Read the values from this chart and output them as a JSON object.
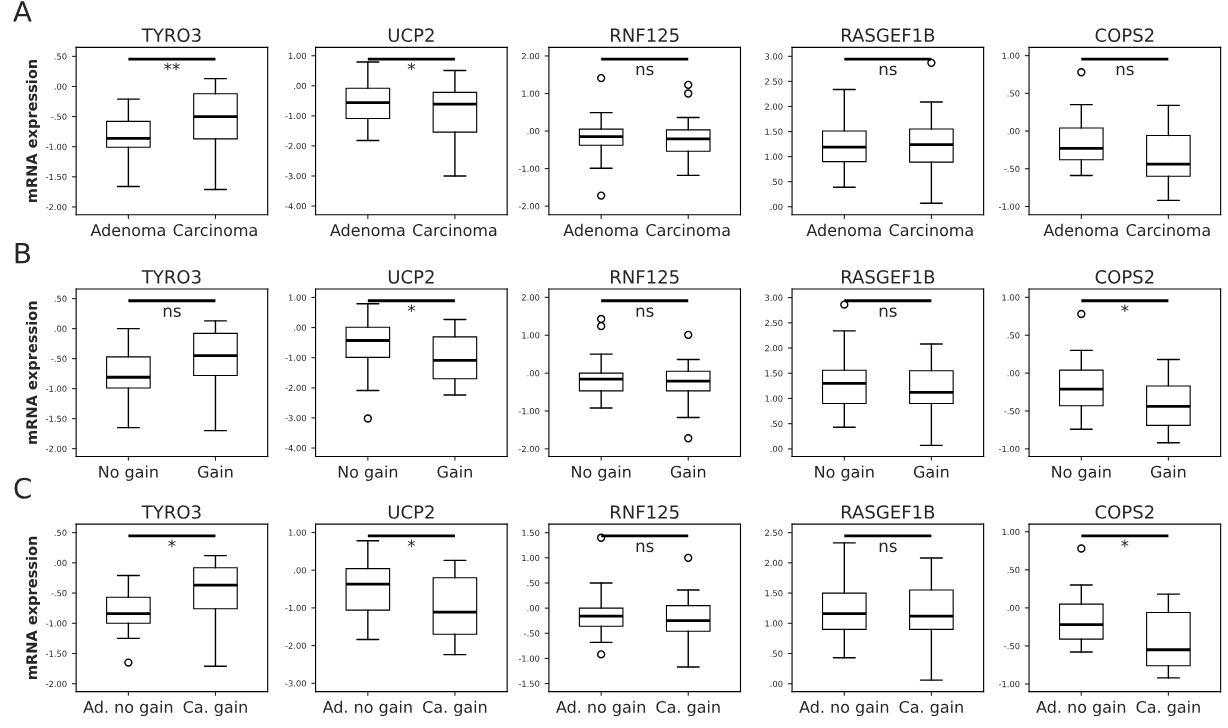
{
  "chart_data": [
    {
      "type": "box",
      "title": "TYRO3",
      "ylabel": "mRNA expression",
      "annotations": [
        "A",
        "**"
      ],
      "categories": [
        "Adenoma",
        "Carcinoma"
      ],
      "ylim": [
        -2.13,
        0.65
      ],
      "yticks": [
        {
          "value": -2,
          "label": "-2.00"
        },
        {
          "value": -1.5,
          "label": "-1.50"
        },
        {
          "value": -1,
          "label": "-1.00"
        },
        {
          "value": -0.5,
          "label": "-.50"
        },
        {
          "value": 0,
          "label": ".00"
        },
        {
          "value": 0.5,
          "label": ".50"
        }
      ],
      "boxes": [
        {
          "low": -1.66,
          "q1": -1.01,
          "median": -0.86,
          "q3": -0.58,
          "high": -0.21
        },
        {
          "low": -1.71,
          "q1": -0.87,
          "median": -0.5,
          "q3": -0.12,
          "high": 0.13
        }
      ]
    },
    {
      "type": "box",
      "title": "UCP2",
      "annotations": [
        "*"
      ],
      "categories": [
        "Adenoma",
        "Carcinoma"
      ],
      "ylim": [
        -4.29,
        1.28
      ],
      "yticks": [
        {
          "value": -4,
          "label": "-4.00"
        },
        {
          "value": -3,
          "label": "-3.00"
        },
        {
          "value": -2,
          "label": "-2.00"
        },
        {
          "value": -1,
          "label": "-1.00"
        },
        {
          "value": 0,
          "label": ".00"
        },
        {
          "value": 1,
          "label": "1.00"
        }
      ],
      "boxes": [
        {
          "low": -1.82,
          "q1": -1.09,
          "median": -0.56,
          "q3": -0.08,
          "high": 0.79
        },
        {
          "low": -3.0,
          "q1": -1.54,
          "median": -0.61,
          "q3": -0.22,
          "high": 0.51
        }
      ]
    },
    {
      "type": "box",
      "title": "RNF125",
      "annotations": [
        "ns"
      ],
      "categories": [
        "Adenoma",
        "Carcinoma"
      ],
      "ylim": [
        -2.23,
        2.23
      ],
      "yticks": [
        {
          "value": -2,
          "label": "-2.00"
        },
        {
          "value": -1,
          "label": "-1.00"
        },
        {
          "value": 0,
          "label": ".00"
        },
        {
          "value": 1,
          "label": "1.00"
        },
        {
          "value": 2,
          "label": "2.00"
        }
      ],
      "boxes": [
        {
          "low": -0.99,
          "q1": -0.38,
          "median": -0.15,
          "q3": 0.05,
          "high": 0.49,
          "outliers": [
            1.41,
            -1.72
          ]
        },
        {
          "low": -1.18,
          "q1": -0.54,
          "median": -0.21,
          "q3": 0.03,
          "high": 0.36,
          "outliers": [
            1.23,
            1.0
          ]
        }
      ]
    },
    {
      "type": "box",
      "title": "RASGEF1B",
      "annotations": [
        "ns"
      ],
      "categories": [
        "Adenoma",
        "Carcinoma"
      ],
      "ylim": [
        -0.16,
        3.18
      ],
      "yticks": [
        {
          "value": 0,
          "label": ".00"
        },
        {
          "value": 0.5,
          "label": ".50"
        },
        {
          "value": 1,
          "label": "1.00"
        },
        {
          "value": 1.5,
          "label": "1.50"
        },
        {
          "value": 2,
          "label": "2.00"
        },
        {
          "value": 2.5,
          "label": "2.50"
        },
        {
          "value": 3,
          "label": "3.00"
        }
      ],
      "boxes": [
        {
          "low": 0.39,
          "q1": 0.9,
          "median": 1.19,
          "q3": 1.51,
          "high": 2.34
        },
        {
          "low": 0.07,
          "q1": 0.89,
          "median": 1.24,
          "q3": 1.55,
          "high": 2.09,
          "outliers": [
            2.87
          ]
        }
      ]
    },
    {
      "type": "box",
      "title": "COPS2",
      "annotations": [
        "ns"
      ],
      "categories": [
        "Adenoma",
        "Carcinoma"
      ],
      "ylim": [
        -1.11,
        1.11
      ],
      "yticks": [
        {
          "value": -1,
          "label": "-1.00"
        },
        {
          "value": -0.5,
          "label": "-.50"
        },
        {
          "value": 0,
          "label": ".00"
        },
        {
          "value": 0.5,
          "label": ".50"
        },
        {
          "value": 1,
          "label": "1.00"
        }
      ],
      "boxes": [
        {
          "low": -0.59,
          "q1": -0.38,
          "median": -0.23,
          "q3": 0.04,
          "high": 0.35,
          "outliers": [
            0.78
          ]
        },
        {
          "low": -0.92,
          "q1": -0.6,
          "median": -0.44,
          "q3": -0.06,
          "high": 0.34
        }
      ]
    },
    {
      "type": "box",
      "title": "TYRO3",
      "ylabel": "mRNA expression",
      "annotations": [
        "B",
        "ns"
      ],
      "categories": [
        "No gain",
        "Gain"
      ],
      "ylim": [
        -2.13,
        0.66
      ],
      "yticks": [
        {
          "value": -2,
          "label": "-2.00"
        },
        {
          "value": -1.5,
          "label": "-1.50"
        },
        {
          "value": -1,
          "label": "-1.00"
        },
        {
          "value": -0.5,
          "label": "-.50"
        },
        {
          "value": 0,
          "label": ".00"
        },
        {
          "value": 0.5,
          "label": ".50"
        }
      ],
      "boxes": [
        {
          "low": -1.65,
          "q1": -0.99,
          "median": -0.81,
          "q3": -0.47,
          "high": 0.0
        },
        {
          "low": -1.7,
          "q1": -0.78,
          "median": -0.45,
          "q3": -0.08,
          "high": 0.13
        }
      ]
    },
    {
      "type": "box",
      "title": "UCP2",
      "annotations": [
        "*"
      ],
      "categories": [
        "No gain",
        "Gain"
      ],
      "ylim": [
        -4.28,
        1.28
      ],
      "yticks": [
        {
          "value": -4,
          "label": "-4.00"
        },
        {
          "value": -3,
          "label": "-3.00"
        },
        {
          "value": -2,
          "label": "-2.00"
        },
        {
          "value": -1,
          "label": "-1.00"
        },
        {
          "value": 0,
          "label": ".00"
        },
        {
          "value": 1,
          "label": "1.00"
        }
      ],
      "boxes": [
        {
          "low": -2.09,
          "q1": -0.99,
          "median": -0.43,
          "q3": 0.01,
          "high": 0.79,
          "outliers": [
            -3.02
          ]
        },
        {
          "low": -2.24,
          "q1": -1.7,
          "median": -1.09,
          "q3": -0.31,
          "high": 0.27
        }
      ]
    },
    {
      "type": "box",
      "title": "RNF125",
      "annotations": [
        "ns"
      ],
      "categories": [
        "No gain",
        "Gain"
      ],
      "ylim": [
        -2.2,
        2.22
      ],
      "yticks": [
        {
          "value": -2,
          "label": "-2.00"
        },
        {
          "value": -1,
          "label": "-1.00"
        },
        {
          "value": 0,
          "label": ".00"
        },
        {
          "value": 1,
          "label": "1.00"
        },
        {
          "value": 2,
          "label": "2.00"
        }
      ],
      "boxes": [
        {
          "low": -0.92,
          "q1": -0.47,
          "median": -0.16,
          "q3": 0.0,
          "high": 0.5,
          "outliers": [
            1.43,
            1.24
          ]
        },
        {
          "low": -1.17,
          "q1": -0.47,
          "median": -0.21,
          "q3": 0.05,
          "high": 0.36,
          "outliers": [
            1.01,
            -1.72
          ]
        }
      ]
    },
    {
      "type": "box",
      "title": "RASGEF1B",
      "annotations": [
        "ns"
      ],
      "categories": [
        "No gain",
        "Gain"
      ],
      "ylim": [
        -0.15,
        3.17
      ],
      "yticks": [
        {
          "value": 0,
          "label": ".00"
        },
        {
          "value": 0.5,
          "label": ".50"
        },
        {
          "value": 1,
          "label": "1.00"
        },
        {
          "value": 1.5,
          "label": "1.50"
        },
        {
          "value": 2,
          "label": "2.00"
        },
        {
          "value": 2.5,
          "label": "2.50"
        },
        {
          "value": 3,
          "label": "3.00"
        }
      ],
      "boxes": [
        {
          "low": 0.43,
          "q1": 0.9,
          "median": 1.3,
          "q3": 1.56,
          "high": 2.34,
          "outliers": [
            2.86
          ]
        },
        {
          "low": 0.07,
          "q1": 0.9,
          "median": 1.12,
          "q3": 1.55,
          "high": 2.08
        }
      ]
    },
    {
      "type": "box",
      "title": "COPS2",
      "annotations": [
        "*"
      ],
      "categories": [
        "No gain",
        "Gain"
      ],
      "ylim": [
        -1.1,
        1.11
      ],
      "yticks": [
        {
          "value": -1,
          "label": "-1.00"
        },
        {
          "value": -0.5,
          "label": "-.50"
        },
        {
          "value": 0,
          "label": ".00"
        },
        {
          "value": 0.5,
          "label": ".50"
        },
        {
          "value": 1,
          "label": "1.00"
        }
      ],
      "boxes": [
        {
          "low": -0.74,
          "q1": -0.43,
          "median": -0.21,
          "q3": 0.04,
          "high": 0.3,
          "outliers": [
            0.78
          ]
        },
        {
          "low": -0.92,
          "q1": -0.69,
          "median": -0.44,
          "q3": -0.17,
          "high": 0.18
        }
      ]
    },
    {
      "type": "box",
      "title": "TYRO3",
      "ylabel": "mRNA expression",
      "annotations": [
        "C",
        "*"
      ],
      "categories": [
        "Ad. no gain",
        "Ca. gain"
      ],
      "ylim": [
        -2.13,
        0.64
      ],
      "yticks": [
        {
          "value": -2,
          "label": "-2.00"
        },
        {
          "value": -1.5,
          "label": "-1.50"
        },
        {
          "value": -1,
          "label": "-1.00"
        },
        {
          "value": -0.5,
          "label": "-.50"
        },
        {
          "value": 0,
          "label": ".00"
        },
        {
          "value": 0.5,
          "label": ".50"
        }
      ],
      "boxes": [
        {
          "low": -1.25,
          "q1": -1.0,
          "median": -0.84,
          "q3": -0.57,
          "high": -0.21,
          "outliers": [
            -1.65
          ]
        },
        {
          "low": -1.71,
          "q1": -0.76,
          "median": -0.37,
          "q3": -0.08,
          "high": 0.12
        }
      ]
    },
    {
      "type": "box",
      "title": "UCP2",
      "annotations": [
        "*"
      ],
      "categories": [
        "Ad. no gain",
        "Ca. gain"
      ],
      "ylim": [
        -3.22,
        1.22
      ],
      "yticks": [
        {
          "value": -3,
          "label": "-3.00"
        },
        {
          "value": -2,
          "label": "-2.00"
        },
        {
          "value": -1,
          "label": "-1.00"
        },
        {
          "value": 0,
          "label": ".00"
        },
        {
          "value": 1,
          "label": "1.00"
        }
      ],
      "boxes": [
        {
          "low": -1.84,
          "q1": -1.06,
          "median": -0.37,
          "q3": 0.04,
          "high": 0.78
        },
        {
          "low": -2.24,
          "q1": -1.7,
          "median": -1.11,
          "q3": -0.2,
          "high": 0.26
        }
      ]
    },
    {
      "type": "box",
      "title": "RNF125",
      "annotations": [
        "ns"
      ],
      "categories": [
        "Ad. no gain",
        "Ca. gain"
      ],
      "ylim": [
        -1.66,
        1.67
      ],
      "yticks": [
        {
          "value": -1.5,
          "label": "-1.50"
        },
        {
          "value": -1,
          "label": "-1.00"
        },
        {
          "value": -0.5,
          "label": "-.50"
        },
        {
          "value": 0,
          "label": ".00"
        },
        {
          "value": 0.5,
          "label": ".50"
        },
        {
          "value": 1,
          "label": "1.00"
        },
        {
          "value": 1.5,
          "label": "1.50"
        }
      ],
      "boxes": [
        {
          "low": -0.68,
          "q1": -0.36,
          "median": -0.16,
          "q3": 0.0,
          "high": 0.5,
          "outliers": [
            1.4,
            -0.92
          ]
        },
        {
          "low": -1.17,
          "q1": -0.46,
          "median": -0.25,
          "q3": 0.05,
          "high": 0.36,
          "outliers": [
            1.0
          ]
        }
      ]
    },
    {
      "type": "box",
      "title": "RASGEF1B",
      "annotations": [
        "ns"
      ],
      "categories": [
        "Ad. no gain",
        "Ca. gain"
      ],
      "ylim": [
        -0.13,
        2.64
      ],
      "yticks": [
        {
          "value": 0,
          "label": ".00"
        },
        {
          "value": 0.5,
          "label": ".50"
        },
        {
          "value": 1,
          "label": "1.00"
        },
        {
          "value": 1.5,
          "label": "1.50"
        },
        {
          "value": 2,
          "label": "2.00"
        },
        {
          "value": 2.5,
          "label": "2.50"
        }
      ],
      "boxes": [
        {
          "low": 0.43,
          "q1": 0.9,
          "median": 1.16,
          "q3": 1.5,
          "high": 2.33
        },
        {
          "low": 0.06,
          "q1": 0.9,
          "median": 1.12,
          "q3": 1.55,
          "high": 2.08
        }
      ]
    },
    {
      "type": "box",
      "title": "COPS2",
      "annotations": [
        "*"
      ],
      "categories": [
        "Ad. no gain",
        "Ca. gain"
      ],
      "ylim": [
        -1.1,
        1.1
      ],
      "yticks": [
        {
          "value": -1,
          "label": "-1.00"
        },
        {
          "value": -0.5,
          "label": "-.50"
        },
        {
          "value": 0,
          "label": ".00"
        },
        {
          "value": 0.5,
          "label": ".50"
        },
        {
          "value": 1,
          "label": "1.00"
        }
      ],
      "boxes": [
        {
          "low": -0.58,
          "q1": -0.41,
          "median": -0.22,
          "q3": 0.05,
          "high": 0.3,
          "outliers": [
            0.78
          ]
        },
        {
          "low": -0.92,
          "q1": -0.76,
          "median": -0.55,
          "q3": -0.06,
          "high": 0.18
        }
      ]
    }
  ]
}
